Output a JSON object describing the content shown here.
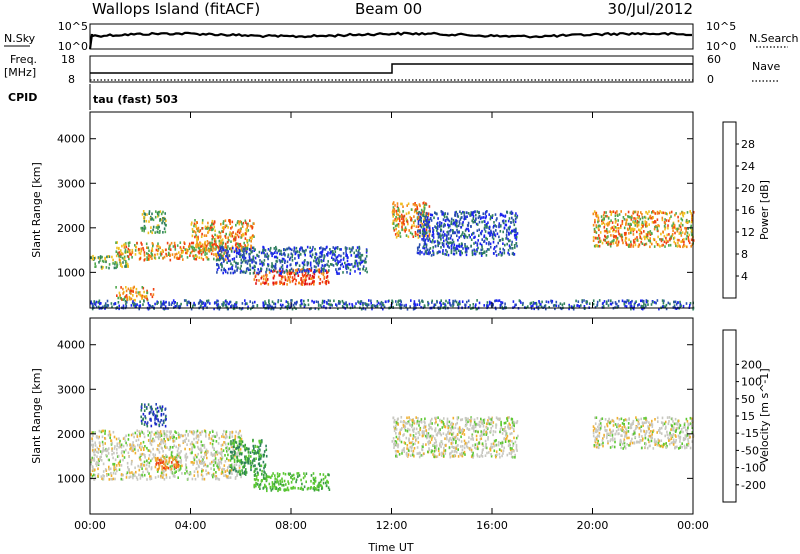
{
  "header": {
    "station": "Wallops Island (fitACF)",
    "beam": "Beam 00",
    "date": "30/Jul/2012"
  },
  "side_labels": {
    "nsky": "N.Sky",
    "nsearch": "N.Search",
    "freq": "Freq.",
    "freq_unit": "[MHz]",
    "nave": "Nave",
    "cpid": "CPID",
    "cpid_value": "tau (fast) 503"
  },
  "noise_panel": {
    "ticks_left": [
      "10^5",
      "10^0"
    ],
    "ticks_right": [
      "10^5",
      "10^0"
    ]
  },
  "freq_panel": {
    "ticks_left": [
      "18",
      "8"
    ],
    "ticks_right": [
      "60",
      "0"
    ]
  },
  "colors": {
    "power_scale": [
      "#1a22f0",
      "#2a4fae",
      "#2f7f5e",
      "#4fa84e",
      "#f0c020",
      "#f38a18",
      "#f04010",
      "#e01010"
    ],
    "velocity_scale": [
      "#e01010",
      "#f04010",
      "#f38a18",
      "#f0b030",
      "#c8c8c0",
      "#5cc832",
      "#3aa040",
      "#2d7f5a",
      "#2845b5",
      "#1a22d0"
    ]
  },
  "chart_data": [
    {
      "type": "heatmap",
      "panel": "power",
      "xlabel": "",
      "ylabel": "Slant Range [km]",
      "x_ticks": [
        "00:00",
        "04:00",
        "08:00",
        "12:00",
        "16:00",
        "20:00",
        "00:00"
      ],
      "y_ticks": [
        1000,
        2000,
        3000,
        4000
      ],
      "ylim": [
        200,
        4600
      ],
      "xlim_hours": [
        0,
        24
      ],
      "colorbar": {
        "label": "Power [dB]",
        "ticks": [
          4,
          8,
          12,
          16,
          20,
          24,
          28
        ],
        "range": [
          0,
          32
        ]
      },
      "scatter_bands": [
        {
          "t": [
            0.0,
            1.5
          ],
          "r": [
            1100,
            1400
          ],
          "level": "mid"
        },
        {
          "t": [
            1.0,
            5.5
          ],
          "r": [
            1300,
            1700
          ],
          "level": "high"
        },
        {
          "t": [
            1.0,
            2.5
          ],
          "r": [
            400,
            700
          ],
          "level": "high"
        },
        {
          "t": [
            2.0,
            3.0
          ],
          "r": [
            1900,
            2400
          ],
          "level": "mid"
        },
        {
          "t": [
            4.0,
            6.5
          ],
          "r": [
            1500,
            2200
          ],
          "level": "high"
        },
        {
          "t": [
            6.5,
            9.5
          ],
          "r": [
            750,
            1100
          ],
          "level": "max"
        },
        {
          "t": [
            5.0,
            11.0
          ],
          "r": [
            1000,
            1600
          ],
          "level": "low"
        },
        {
          "t": [
            12.0,
            13.5
          ],
          "r": [
            1800,
            2600
          ],
          "level": "high"
        },
        {
          "t": [
            13.0,
            17.0
          ],
          "r": [
            1400,
            2400
          ],
          "level": "low"
        },
        {
          "t": [
            20.0,
            24.0
          ],
          "r": [
            1600,
            2400
          ],
          "level": "high"
        },
        {
          "t": [
            0.0,
            24.0
          ],
          "r": [
            200,
            400
          ],
          "level": "low"
        }
      ]
    },
    {
      "type": "heatmap",
      "panel": "velocity",
      "xlabel": "Time UT",
      "ylabel": "Slant Range [km]",
      "x_ticks": [
        "00:00",
        "04:00",
        "08:00",
        "12:00",
        "16:00",
        "20:00",
        "00:00"
      ],
      "y_ticks": [
        1000,
        2000,
        3000,
        4000
      ],
      "ylim": [
        200,
        4600
      ],
      "xlim_hours": [
        0,
        24
      ],
      "colorbar": {
        "label": "Velocity [m s^-1]",
        "ticks": [
          -200,
          -100,
          -50,
          -15,
          15,
          50,
          100,
          200
        ],
        "range": [
          -250,
          250
        ]
      },
      "scatter_bands": [
        {
          "t": [
            0.0,
            6.0
          ],
          "r": [
            1000,
            2100
          ],
          "level": "ground"
        },
        {
          "t": [
            6.5,
            9.5
          ],
          "r": [
            750,
            1150
          ],
          "level": "pos_low"
        },
        {
          "t": [
            5.5,
            7.0
          ],
          "r": [
            1100,
            1900
          ],
          "level": "pos_mid"
        },
        {
          "t": [
            2.5,
            3.5
          ],
          "r": [
            1200,
            1500
          ],
          "level": "neg_mid"
        },
        {
          "t": [
            12.0,
            17.0
          ],
          "r": [
            1500,
            2400
          ],
          "level": "ground"
        },
        {
          "t": [
            20.0,
            24.0
          ],
          "r": [
            1700,
            2400
          ],
          "level": "ground"
        },
        {
          "t": [
            2.0,
            3.0
          ],
          "r": [
            2200,
            2700
          ],
          "level": "pos_high"
        }
      ]
    }
  ]
}
